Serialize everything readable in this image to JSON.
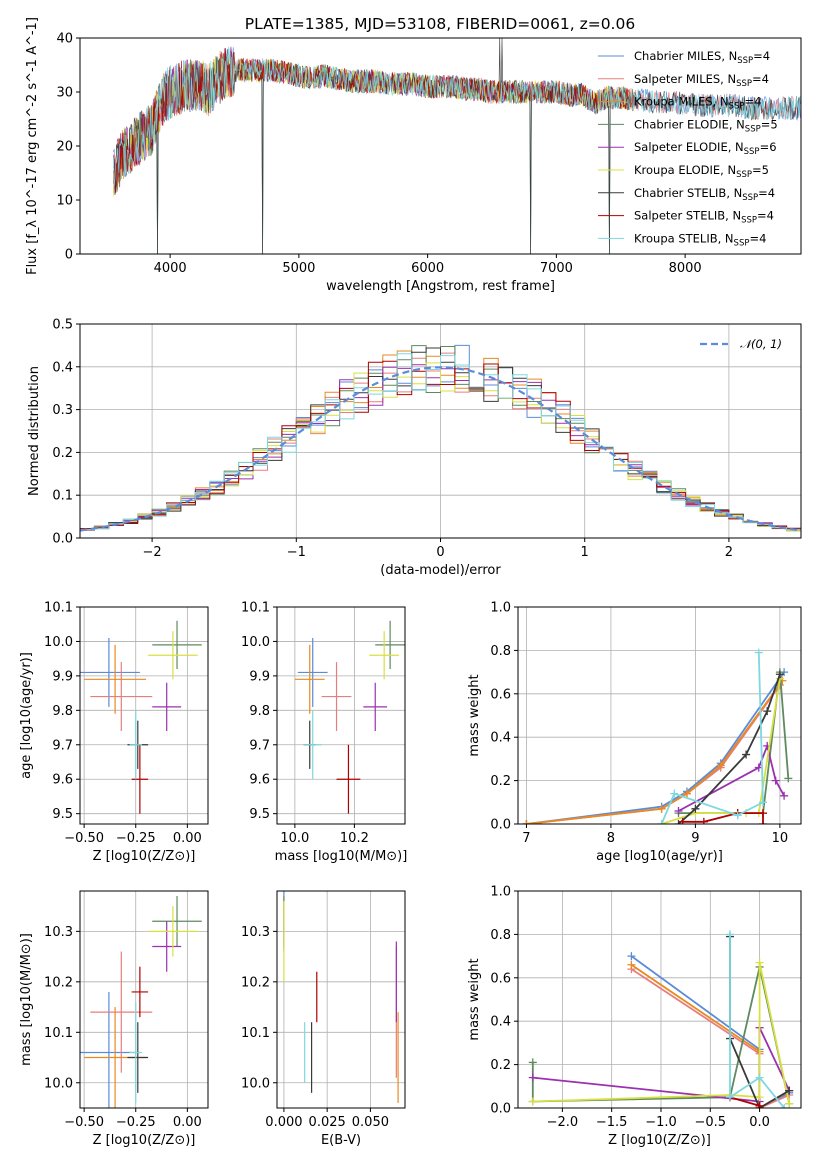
{
  "figure": {
    "title": "PLATE=1385, MJD=53108, FIBERID=0061, z=0.06"
  },
  "models": [
    {
      "name": "Chabrier MILES",
      "nssp": "4",
      "color": "#5b8bd9"
    },
    {
      "name": "Salpeter MILES",
      "nssp": "4",
      "color": "#e87d7d"
    },
    {
      "name": "Kroupa MILES",
      "nssp": "4",
      "color": "#e88a20"
    },
    {
      "name": "Chabrier ELODIE",
      "nssp": "5",
      "color": "#5f8a5f"
    },
    {
      "name": "Salpeter ELODIE",
      "nssp": "6",
      "color": "#9b30b0"
    },
    {
      "name": "Kroupa ELODIE",
      "nssp": "5",
      "color": "#d8e040"
    },
    {
      "name": "Chabrier STELIB",
      "nssp": "4",
      "color": "#3a3a3a"
    },
    {
      "name": "Salpeter STELIB",
      "nssp": "4",
      "color": "#b00000"
    },
    {
      "name": "Kroupa STELIB",
      "nssp": "4",
      "color": "#7dd8e0"
    }
  ],
  "chart_data": [
    {
      "id": "spectrum",
      "type": "line",
      "title": "PLATE=1385, MJD=53108, FIBERID=0061, z=0.06",
      "xlabel": "wavelength [Angstrom, rest frame]",
      "ylabel": "Flux [f_λ 10^-17 erg cm^-2 s^-1 A^-1]",
      "xlim": [
        3300,
        8900
      ],
      "ylim": [
        0,
        40
      ],
      "xticks": [
        "4000",
        "5000",
        "6000",
        "7000",
        "8000"
      ],
      "yticks": [
        "0",
        "10",
        "20",
        "30",
        "40"
      ],
      "legend": "top-right",
      "profile": [
        [
          3560,
          15
        ],
        [
          3650,
          19
        ],
        [
          3750,
          21
        ],
        [
          3850,
          23
        ],
        [
          3950,
          29
        ],
        [
          4000,
          30
        ],
        [
          4100,
          31
        ],
        [
          4200,
          31.5
        ],
        [
          4300,
          30.5
        ],
        [
          4400,
          33
        ],
        [
          4500,
          34
        ],
        [
          4600,
          34
        ],
        [
          4700,
          34
        ],
        [
          4800,
          34
        ],
        [
          4900,
          33.5
        ],
        [
          5000,
          33
        ],
        [
          5100,
          32.5
        ],
        [
          5200,
          33
        ],
        [
          5300,
          32.5
        ],
        [
          5400,
          32
        ],
        [
          5500,
          32
        ],
        [
          5600,
          32
        ],
        [
          5700,
          31.5
        ],
        [
          5800,
          31.5
        ],
        [
          5900,
          31.5
        ],
        [
          6000,
          31
        ],
        [
          6100,
          31
        ],
        [
          6200,
          31
        ],
        [
          6300,
          30.5
        ],
        [
          6400,
          30.5
        ],
        [
          6500,
          30
        ],
        [
          6600,
          30
        ],
        [
          6700,
          30
        ],
        [
          6800,
          30
        ],
        [
          6900,
          30
        ],
        [
          7000,
          30
        ],
        [
          7100,
          29.5
        ],
        [
          7200,
          29.5
        ],
        [
          7300,
          28
        ],
        [
          7400,
          29
        ],
        [
          7500,
          29
        ],
        [
          7600,
          28.5
        ],
        [
          7700,
          28.5
        ],
        [
          7800,
          28
        ],
        [
          7900,
          28
        ],
        [
          8000,
          28
        ],
        [
          8100,
          27.5
        ],
        [
          8200,
          27.5
        ],
        [
          8300,
          27.5
        ],
        [
          8400,
          27.5
        ],
        [
          8500,
          27
        ],
        [
          8600,
          27
        ],
        [
          8700,
          27
        ],
        [
          8800,
          27
        ],
        [
          8900,
          27
        ]
      ],
      "dips": [
        [
          3900,
          0
        ],
        [
          4720,
          0
        ],
        [
          6800,
          0
        ],
        [
          7410,
          0
        ]
      ],
      "spikes": [
        [
          6560,
          40
        ],
        [
          6580,
          40
        ]
      ]
    },
    {
      "id": "residuals",
      "type": "bar",
      "xlabel": "(data-model)/error",
      "ylabel": "Normed distribution",
      "xlim": [
        -2.5,
        2.5
      ],
      "ylim": [
        0,
        0.5
      ],
      "xticks": [
        "−2",
        "−1",
        "0",
        "1",
        "2"
      ],
      "yticks": [
        "0.0",
        "0.1",
        "0.2",
        "0.3",
        "0.4",
        "0.5"
      ],
      "bin_width": 0.1,
      "reference": {
        "name": "𝒩(0, 1)",
        "color": "#5b8bd9"
      },
      "legend": "top-right"
    },
    {
      "id": "age-vs-Z",
      "type": "scatter",
      "xlabel": "Z [log10(Z/Z⊙)]",
      "ylabel": "age  [log10(age/yr)]",
      "xlim": [
        -0.52,
        0.1
      ],
      "ylim": [
        9.47,
        10.1
      ],
      "xticks": [
        "−0.50",
        "−0.25",
        "0.00"
      ],
      "yticks": [
        "9.5",
        "9.6",
        "9.7",
        "9.8",
        "9.9",
        "10.0",
        "10.1"
      ],
      "points": [
        {
          "model": 0,
          "x": -0.38,
          "xerr": 0.15,
          "y": 9.91,
          "yerr": 0.1
        },
        {
          "model": 1,
          "x": -0.32,
          "xerr": 0.15,
          "y": 9.84,
          "yerr": 0.1
        },
        {
          "model": 2,
          "x": -0.35,
          "xerr": 0.15,
          "y": 9.89,
          "yerr": 0.1
        },
        {
          "model": 3,
          "x": -0.05,
          "xerr": 0.12,
          "y": 9.99,
          "yerr": 0.07
        },
        {
          "model": 4,
          "x": -0.1,
          "xerr": 0.07,
          "y": 9.81,
          "yerr": 0.07
        },
        {
          "model": 5,
          "x": -0.07,
          "xerr": 0.12,
          "y": 9.96,
          "yerr": 0.07
        },
        {
          "model": 6,
          "x": -0.24,
          "xerr": 0.05,
          "y": 9.7,
          "yerr": 0.07
        },
        {
          "model": 7,
          "x": -0.23,
          "xerr": 0.04,
          "y": 9.6,
          "yerr": 0.1
        },
        {
          "model": 8,
          "x": -0.25,
          "xerr": 0.03,
          "y": 9.7,
          "yerr": 0.1
        }
      ]
    },
    {
      "id": "age-vs-mass",
      "type": "scatter",
      "xlabel": "mass [log10(M/M⊙)]",
      "ylabel": "",
      "xlim": [
        9.94,
        10.37
      ],
      "ylim": [
        9.47,
        10.1
      ],
      "xticks": [
        "10.0",
        "10.2"
      ],
      "yticks": [
        "9.5",
        "9.6",
        "9.7",
        "9.8",
        "9.9",
        "10.0",
        "10.1"
      ],
      "points": [
        {
          "model": 0,
          "x": 10.06,
          "xerr": 0.05,
          "y": 9.91,
          "yerr": 0.1
        },
        {
          "model": 1,
          "x": 10.14,
          "xerr": 0.05,
          "y": 9.84,
          "yerr": 0.1
        },
        {
          "model": 2,
          "x": 10.05,
          "xerr": 0.05,
          "y": 9.89,
          "yerr": 0.1
        },
        {
          "model": 3,
          "x": 10.32,
          "xerr": 0.05,
          "y": 9.99,
          "yerr": 0.07
        },
        {
          "model": 4,
          "x": 10.27,
          "xerr": 0.04,
          "y": 9.81,
          "yerr": 0.07
        },
        {
          "model": 5,
          "x": 10.3,
          "xerr": 0.05,
          "y": 9.96,
          "yerr": 0.07
        },
        {
          "model": 6,
          "x": 10.05,
          "xerr": 0.02,
          "y": 9.7,
          "yerr": 0.07
        },
        {
          "model": 7,
          "x": 10.18,
          "xerr": 0.04,
          "y": 9.6,
          "yerr": 0.1
        },
        {
          "model": 8,
          "x": 10.06,
          "xerr": 0.03,
          "y": 9.7,
          "yerr": 0.1
        }
      ]
    },
    {
      "id": "weight-vs-age",
      "type": "line",
      "xlabel": "age  [log10(age/yr)]",
      "ylabel": "mass weight",
      "xlim": [
        6.9,
        10.25
      ],
      "ylim": [
        0,
        1
      ],
      "xticks": [
        "7",
        "8",
        "9",
        "10"
      ],
      "yticks": [
        "0.0",
        "0.2",
        "0.4",
        "0.6",
        "0.8",
        "1.0"
      ],
      "series": [
        {
          "model": 0,
          "x": [
            7,
            8.6,
            8.9,
            9.3,
            10.05
          ],
          "y": [
            0.0,
            0.08,
            0.15,
            0.28,
            0.7
          ]
        },
        {
          "model": 1,
          "x": [
            7,
            8.6,
            8.9,
            9.3,
            10.0
          ],
          "y": [
            0.0,
            0.07,
            0.14,
            0.26,
            0.64
          ]
        },
        {
          "model": 2,
          "x": [
            7,
            8.6,
            8.9,
            9.3,
            10.03
          ],
          "y": [
            0.0,
            0.07,
            0.14,
            0.27,
            0.66
          ]
        },
        {
          "model": 3,
          "x": [
            8.8,
            9.5,
            9.8,
            10.0,
            10.1
          ],
          "y": [
            0.05,
            0.05,
            0.05,
            0.7,
            0.21
          ]
        },
        {
          "model": 4,
          "x": [
            8.8,
            9.75,
            9.85,
            9.95,
            10.05
          ],
          "y": [
            0.06,
            0.26,
            0.36,
            0.2,
            0.13
          ]
        },
        {
          "model": 5,
          "x": [
            8.6,
            9.0,
            9.6,
            9.75,
            10.0
          ],
          "y": [
            0.0,
            0.05,
            0.05,
            0.05,
            0.67
          ]
        },
        {
          "model": 6,
          "x": [
            8.8,
            9.0,
            9.6,
            9.85,
            10.0
          ],
          "y": [
            0.0,
            0.07,
            0.32,
            0.52,
            0.69
          ]
        },
        {
          "model": 7,
          "x": [
            8.85,
            9.1,
            9.5,
            9.8,
            9.8
          ],
          "y": [
            0.01,
            0.01,
            0.05,
            0.05,
            0.0
          ]
        },
        {
          "model": 8,
          "x": [
            8.6,
            8.75,
            9.5,
            9.8,
            9.75
          ],
          "y": [
            0.0,
            0.14,
            0.04,
            0.1,
            0.79
          ]
        }
      ]
    },
    {
      "id": "mass-vs-Z",
      "type": "scatter",
      "xlabel": "Z [log10(Z/Z⊙)]",
      "ylabel": "mass [log10(M/M⊙)]",
      "xlim": [
        -0.52,
        0.1
      ],
      "ylim": [
        9.95,
        10.38
      ],
      "xticks": [
        "−0.50",
        "−0.25",
        "0.00"
      ],
      "yticks": [
        "10.0",
        "10.1",
        "10.2",
        "10.3"
      ],
      "points": [
        {
          "model": 0,
          "x": -0.38,
          "xerr": 0.15,
          "y": 10.06,
          "yerr": 0.12
        },
        {
          "model": 1,
          "x": -0.32,
          "xerr": 0.15,
          "y": 10.14,
          "yerr": 0.12
        },
        {
          "model": 2,
          "x": -0.35,
          "xerr": 0.15,
          "y": 10.05,
          "yerr": 0.1
        },
        {
          "model": 3,
          "x": -0.05,
          "xerr": 0.12,
          "y": 10.32,
          "yerr": 0.05
        },
        {
          "model": 4,
          "x": -0.1,
          "xerr": 0.07,
          "y": 10.27,
          "yerr": 0.05
        },
        {
          "model": 5,
          "x": -0.07,
          "xerr": 0.12,
          "y": 10.3,
          "yerr": 0.05
        },
        {
          "model": 6,
          "x": -0.24,
          "xerr": 0.05,
          "y": 10.05,
          "yerr": 0.07
        },
        {
          "model": 7,
          "x": -0.23,
          "xerr": 0.04,
          "y": 10.18,
          "yerr": 0.05
        },
        {
          "model": 8,
          "x": -0.25,
          "xerr": 0.03,
          "y": 10.06,
          "yerr": 0.1
        }
      ]
    },
    {
      "id": "mass-vs-EBV",
      "type": "scatter",
      "xlabel": "E(B-V)",
      "ylabel": "",
      "xlim": [
        -0.004,
        0.07
      ],
      "ylim": [
        9.95,
        10.38
      ],
      "xticks": [
        "0.000",
        "0.025",
        "0.050"
      ],
      "yticks": [
        "10.0",
        "10.1",
        "10.2",
        "10.3"
      ],
      "points": [
        {
          "model": 0,
          "x": 0.0,
          "xerr": 0,
          "y": 10.32,
          "yerr": 0.06
        },
        {
          "model": 1,
          "x": 0.065,
          "xerr": 0,
          "y": 10.14,
          "yerr": 0.13
        },
        {
          "model": 2,
          "x": 0.066,
          "xerr": 0,
          "y": 10.05,
          "yerr": 0.09
        },
        {
          "model": 3,
          "x": 0.0,
          "xerr": 0,
          "y": 10.32,
          "yerr": 0.05
        },
        {
          "model": 4,
          "x": 0.065,
          "xerr": 0,
          "y": 10.2,
          "yerr": 0.08
        },
        {
          "model": 5,
          "x": 0.0,
          "xerr": 0,
          "y": 10.28,
          "yerr": 0.08
        },
        {
          "model": 6,
          "x": 0.016,
          "xerr": 0,
          "y": 10.05,
          "yerr": 0.07
        },
        {
          "model": 7,
          "x": 0.019,
          "xerr": 0,
          "y": 10.17,
          "yerr": 0.05
        },
        {
          "model": 8,
          "x": 0.012,
          "xerr": 0,
          "y": 10.06,
          "yerr": 0.06
        }
      ]
    },
    {
      "id": "weight-vs-Z",
      "type": "line",
      "xlabel": "Z [log10(Z/Z⊙)]",
      "ylabel": "mass weight",
      "xlim": [
        -2.45,
        0.42
      ],
      "ylim": [
        0,
        1
      ],
      "xticks": [
        "−2.0",
        "−1.5",
        "−1.0",
        "−0.5",
        "0.0"
      ],
      "yticks": [
        "0.0",
        "0.2",
        "0.4",
        "0.6",
        "0.8",
        "1.0"
      ],
      "series": [
        {
          "model": 0,
          "x": [
            -1.3,
            0.0,
            0.0,
            0.3
          ],
          "y": [
            0.7,
            0.27,
            0.0,
            0.07
          ]
        },
        {
          "model": 1,
          "x": [
            -1.3,
            0.0,
            0.0,
            0.3
          ],
          "y": [
            0.64,
            0.25,
            0.0,
            0.06
          ]
        },
        {
          "model": 2,
          "x": [
            -1.3,
            0.0,
            0.0,
            0.3
          ],
          "y": [
            0.66,
            0.26,
            0.0,
            0.08
          ]
        },
        {
          "model": 3,
          "x": [
            -2.3,
            -2.3,
            -0.3,
            0.0,
            0.3
          ],
          "y": [
            0.21,
            0.03,
            0.05,
            0.65,
            0.02
          ]
        },
        {
          "model": 4,
          "x": [
            -2.3,
            0.0,
            0.0,
            0.3
          ],
          "y": [
            0.14,
            0.03,
            0.37,
            0.08
          ]
        },
        {
          "model": 5,
          "x": [
            -2.3,
            -0.3,
            0.0,
            0.0,
            0.3
          ],
          "y": [
            0.03,
            0.06,
            0.05,
            0.67,
            0.02
          ]
        },
        {
          "model": 6,
          "x": [
            -0.3,
            -0.3,
            0.0,
            0.3
          ],
          "y": [
            0.79,
            0.32,
            0.0,
            0.08
          ]
        },
        {
          "model": 7,
          "x": [
            -0.3,
            -0.3,
            0.0,
            0.0
          ],
          "y": [
            0.05,
            0.05,
            0.01,
            0.0
          ]
        },
        {
          "model": 8,
          "x": [
            -0.3,
            -0.3,
            0.0,
            0.25
          ],
          "y": [
            0.8,
            0.05,
            0.14,
            0.0
          ]
        }
      ]
    }
  ]
}
